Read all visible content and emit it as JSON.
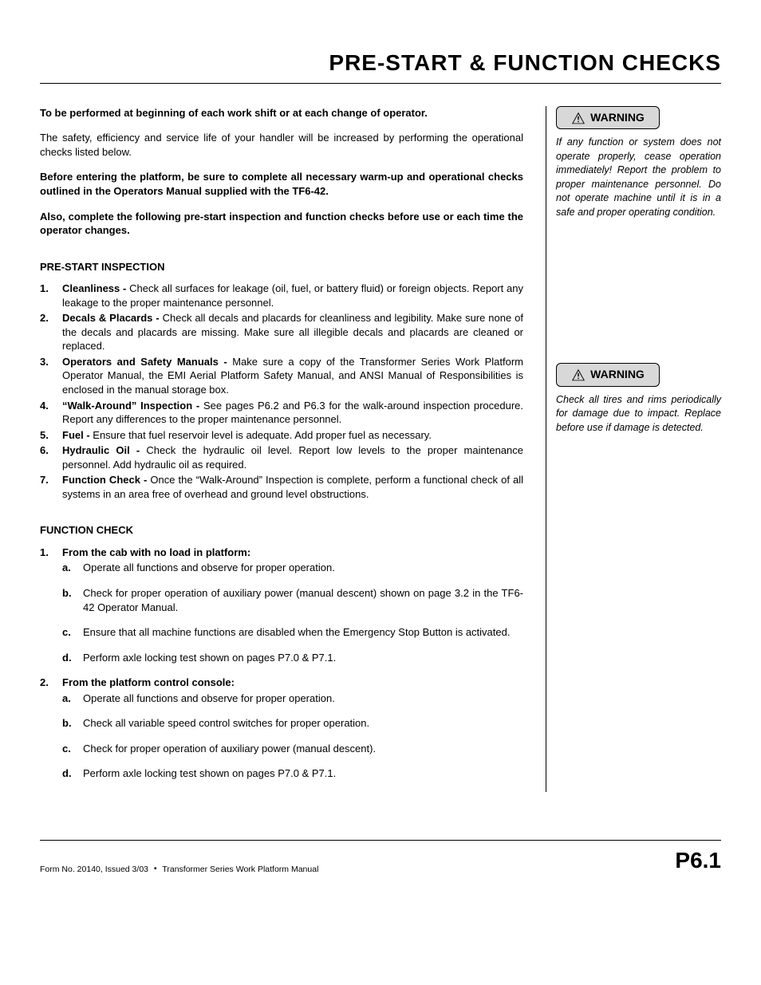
{
  "pageTitle": "PRE-START & FUNCTION CHECKS",
  "intro": {
    "p1": "To be performed at beginning of each work shift or at each change of operator.",
    "p2": "The safety, efficiency and service life of your handler will be increased by performing the operational checks listed below.",
    "p3": "Before entering the platform, be sure to complete all necessary warm-up and operational checks outlined in the Operators Manual supplied with the TF6-42.",
    "p4": "Also, complete the following pre-start inspection and function checks before use or each time the operator changes."
  },
  "preStart": {
    "heading": "PRE-START INSPECTION",
    "items": [
      {
        "n": "1.",
        "lead": "Cleanliness - ",
        "text": "Check all surfaces for leakage (oil, fuel, or battery fluid) or foreign objects. Report any leakage to the proper maintenance personnel."
      },
      {
        "n": "2.",
        "lead": "Decals & Placards - ",
        "text": "Check all decals and placards for cleanliness and legibility. Make sure none of the decals and placards are missing. Make sure all illegible decals and placards are cleaned or replaced."
      },
      {
        "n": "3.",
        "lead": "Operators and Safety Manuals - ",
        "text": "Make sure a copy of the Transformer Series Work Platform Operator Manual, the EMI Aerial Platform Safety Manual, and ANSI Manual of Responsibilities is enclosed in the manual storage box."
      },
      {
        "n": "4.",
        "lead": "“Walk-Around” Inspection - ",
        "text": "See pages P6.2 and P6.3 for the walk-around inspection procedure. Report any differences to the proper maintenance personnel."
      },
      {
        "n": "5.",
        "lead": "Fuel - ",
        "text": "Ensure that fuel reservoir level is adequate. Add proper fuel as necessary."
      },
      {
        "n": "6.",
        "lead": "Hydraulic Oil - ",
        "text": "Check the hydraulic oil level. Report low levels to the proper maintenance personnel. Add hydraulic oil as required."
      },
      {
        "n": "7.",
        "lead": "Function Check - ",
        "text": "Once the “Walk-Around” Inspection is complete, perform a functional check of all systems in an area free of overhead and ground level obstructions."
      }
    ]
  },
  "functionCheck": {
    "heading": "FUNCTION CHECK",
    "groups": [
      {
        "n": "1.",
        "title": "From the cab with no load in platform:",
        "items": [
          {
            "l": "a.",
            "text": "Operate all functions and observe for proper operation."
          },
          {
            "l": "b.",
            "text": "Check for proper operation of auxiliary power (manual descent) shown on  page 3.2 in the TF6-42 Operator Manual."
          },
          {
            "l": "c.",
            "text": "Ensure that all machine functions are disabled when the Emergency Stop Button is activated."
          },
          {
            "l": "d.",
            "text": "Perform axle locking test shown on pages P7.0 & P7.1."
          }
        ]
      },
      {
        "n": "2.",
        "title": "From the platform control console:",
        "items": [
          {
            "l": "a.",
            "text": "Operate all functions and observe for proper operation."
          },
          {
            "l": "b.",
            "text": "Check all variable speed control switches for proper operation."
          },
          {
            "l": "c.",
            "text": "Check for proper operation of auxiliary power (manual descent)."
          },
          {
            "l": "d.",
            "text": "Perform axle locking test shown on pages P7.0 & P7.1."
          }
        ]
      }
    ]
  },
  "sidebar": {
    "warningLabel": "WARNING",
    "warn1": "If any function or system does not operate properly, cease operation immediately! Report the problem to proper maintenance personnel. Do not operate machine until it is in a safe and proper operating condition.",
    "warn2": "Check all tires and rims periodically for damage due to impact. Replace before use if damage is detected."
  },
  "footer": {
    "left1": "Form No. 20140, Issued 3/03",
    "left2": "Transformer Series Work Platform Manual",
    "pageNum": "P6.1"
  },
  "colors": {
    "text": "#000000",
    "bg": "#ffffff",
    "warnBoxBg": "#d8d8d8",
    "border": "#000000"
  }
}
